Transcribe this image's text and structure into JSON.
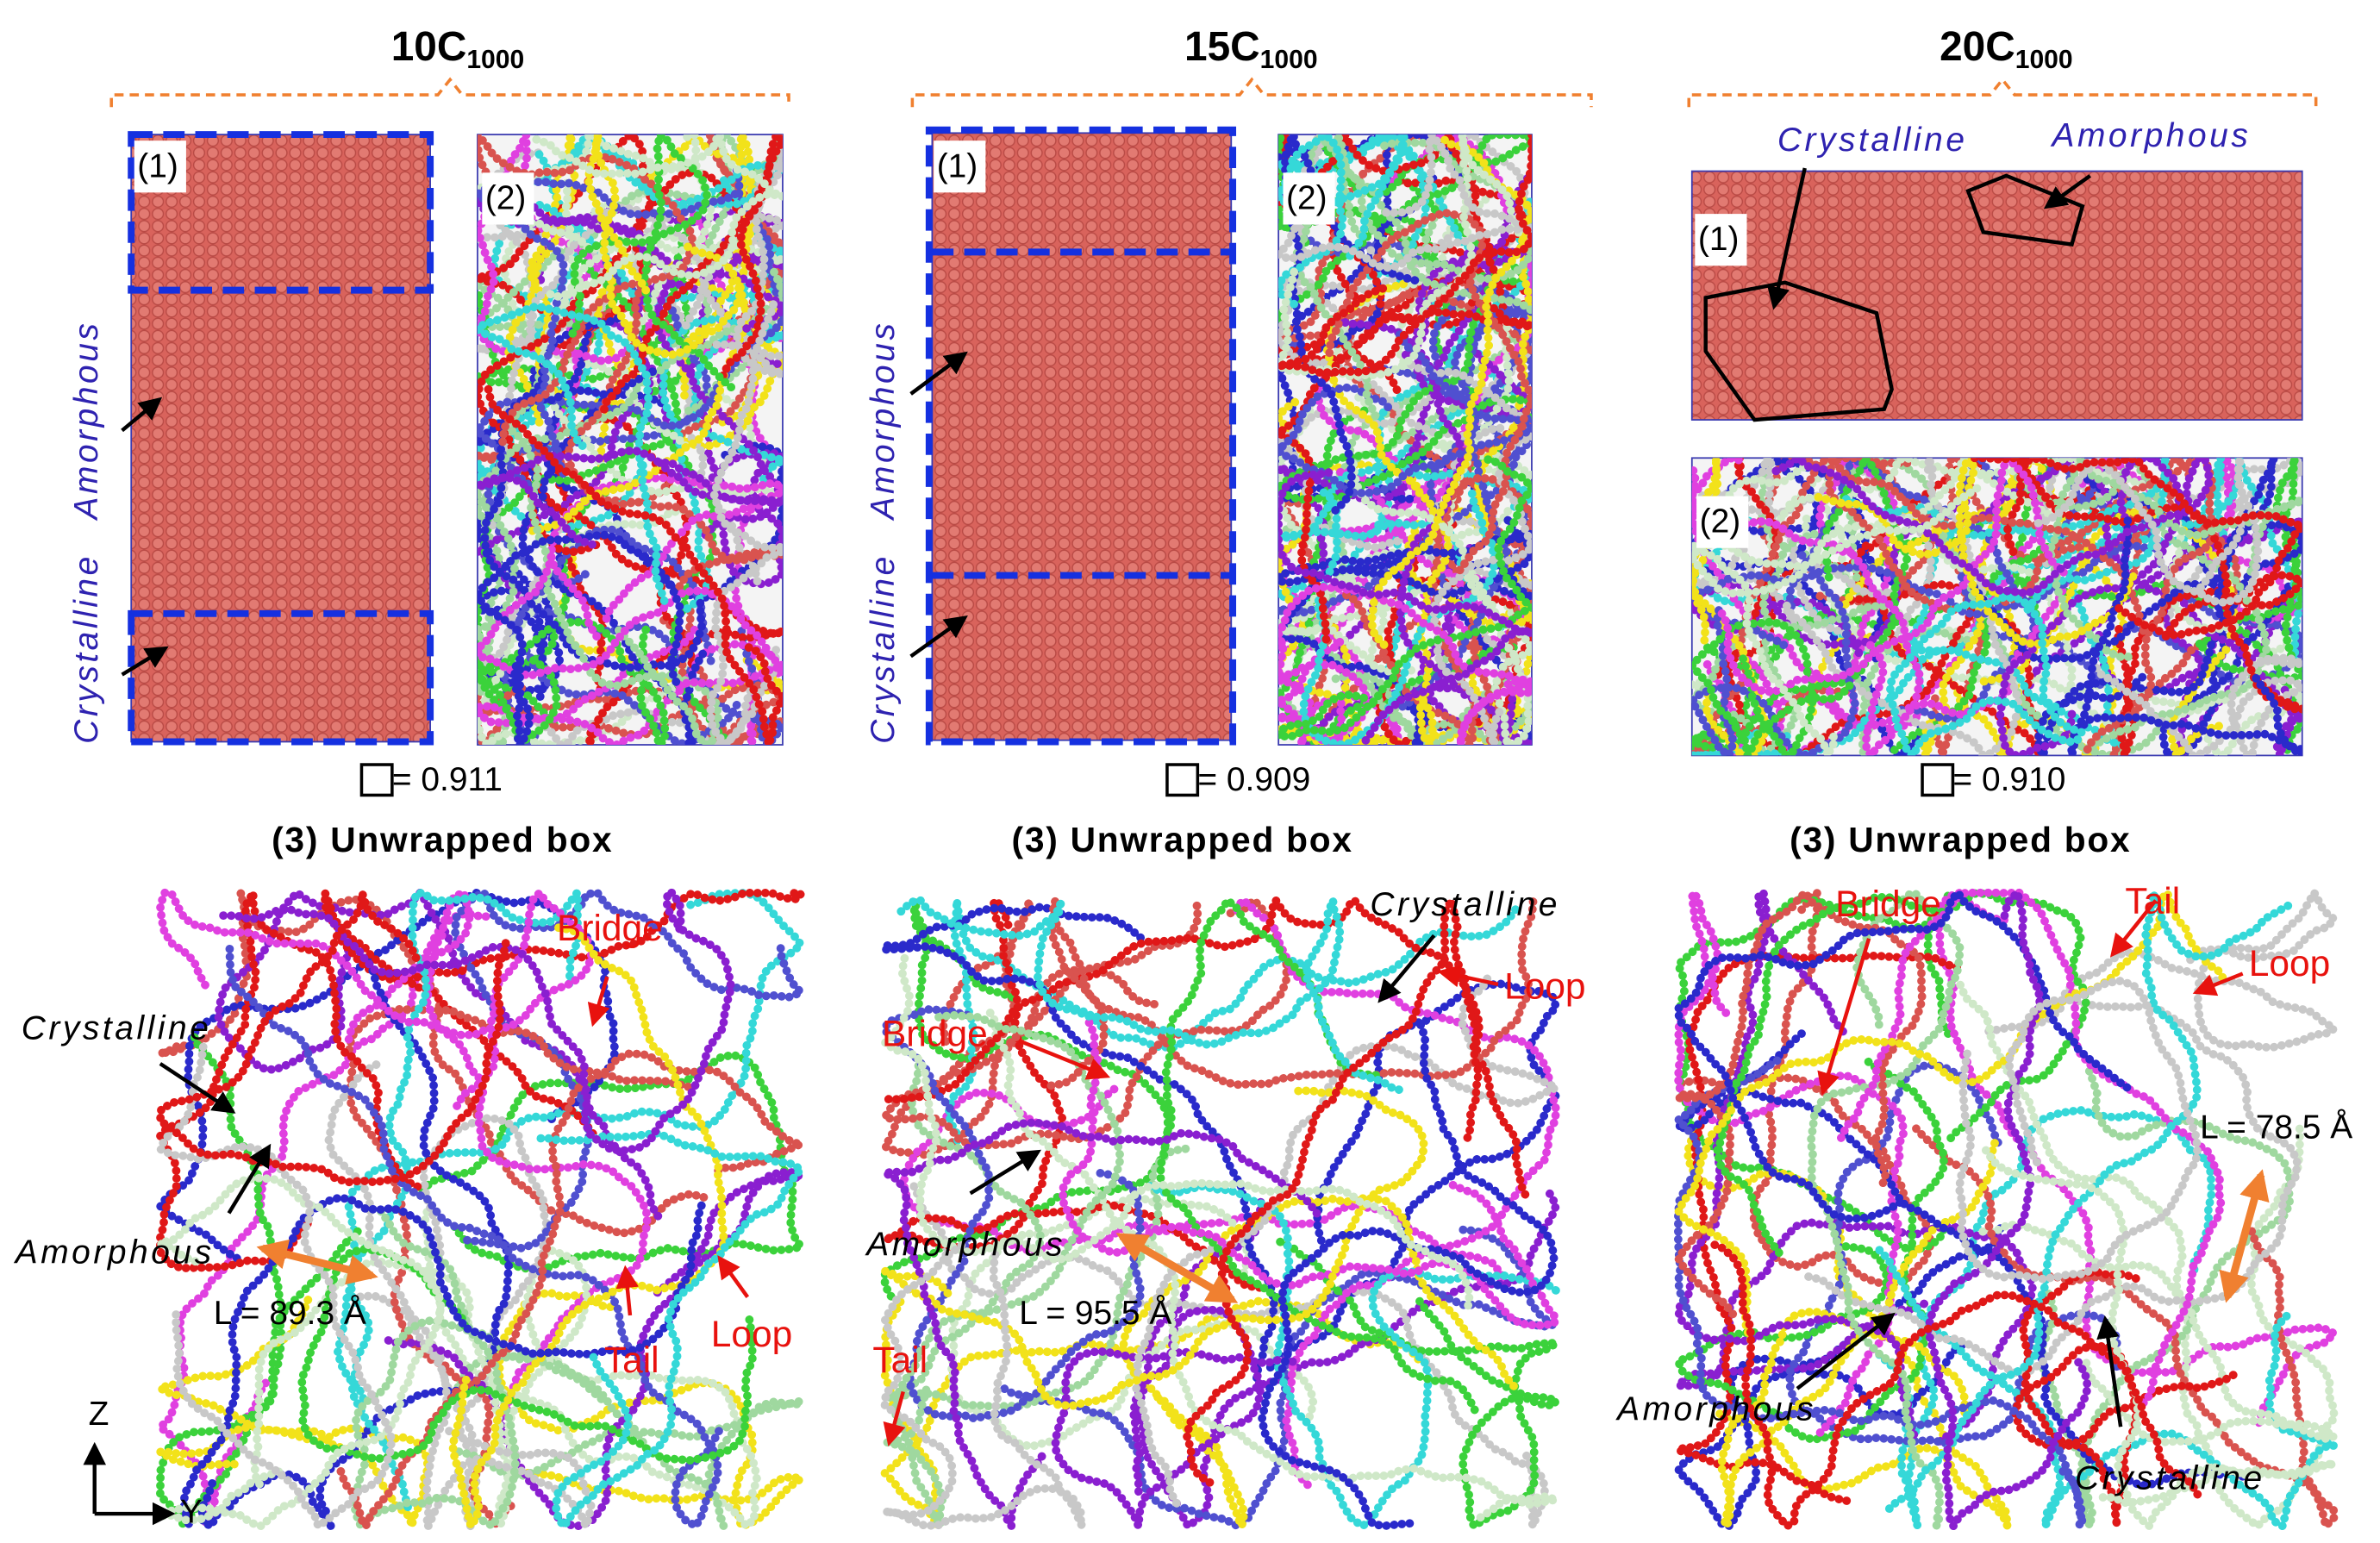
{
  "panels": [
    {
      "title": "10C",
      "title_sub": "1000",
      "box1_label": "(1)",
      "box2_label": "(2)",
      "side_labels": [
        "Amorphous",
        "Crystalline"
      ],
      "ratio": "= 0.911",
      "unwrapped_title": "(3) Unwrapped box",
      "annotations": [
        "Bridge",
        "Crystalline",
        "Amorphous",
        "L = 89.3 Å",
        "Tail",
        "Loop"
      ]
    },
    {
      "title": "15C",
      "title_sub": "1000",
      "box1_label": "(1)",
      "box2_label": "(2)",
      "side_labels": [
        "Amorphous",
        "Crystalline"
      ],
      "ratio": "= 0.909",
      "unwrapped_title": "(3) Unwrapped box",
      "annotations": [
        "Crystalline",
        "Loop",
        "Bridge",
        "Amorphous",
        "L = 95.5 Å",
        "Tail"
      ]
    },
    {
      "title": "20C",
      "title_sub": "1000",
      "box1_label": "(1)",
      "box2_label": "(2)",
      "side_labels": [
        "Crystalline",
        "Amorphous"
      ],
      "ratio": "= 0.910",
      "unwrapped_title": "(3) Unwrapped box",
      "annotations": [
        "Bridge",
        "Tail",
        "Loop",
        "L = 78.5 Å",
        "Amorphous",
        "Crystalline"
      ]
    }
  ],
  "axes": {
    "z": "Z",
    "y": "Y"
  }
}
